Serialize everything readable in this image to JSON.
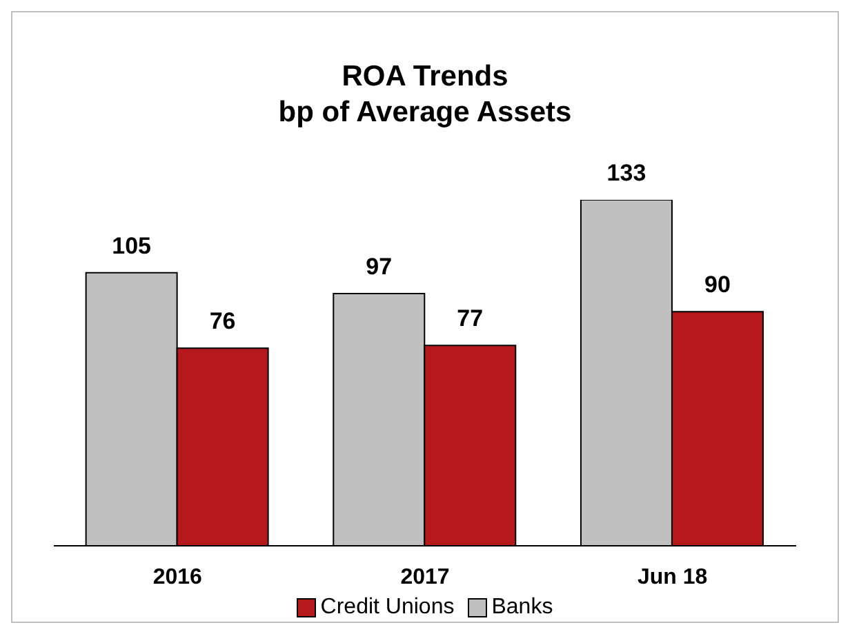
{
  "chart_data": {
    "type": "bar",
    "title": "ROA Trends",
    "subtitle": "bp of Average Assets",
    "categories": [
      "2016",
      "2017",
      "Jun 18"
    ],
    "series": [
      {
        "name": "Banks",
        "color": "#c0c0c0",
        "values": [
          105,
          97,
          133
        ]
      },
      {
        "name": "Credit Unions",
        "color": "#b5191c",
        "values": [
          76,
          77,
          90
        ]
      }
    ],
    "tick_labels": "x",
    "data_labels": true,
    "legend": "bottom",
    "grid": false
  }
}
